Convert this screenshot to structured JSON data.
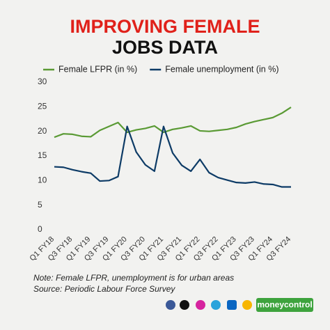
{
  "chart_data": {
    "type": "line",
    "title": "IMPROVING FEMALE",
    "subtitle": "JOBS DATA",
    "categories": [
      "Q1 FY18",
      null,
      "Q3 FY18",
      null,
      "Q1 FY19",
      null,
      "Q3 FY19",
      null,
      "Q1 FY20",
      null,
      "Q3 FY20",
      null,
      "Q1 FY21",
      null,
      "Q3 FY21",
      null,
      "Q1 FY22",
      null,
      "Q3 FY22",
      null,
      "Q1 FY23",
      null,
      "Q3 FY23",
      null,
      "Q1 FY24",
      null,
      "Q3 FY24"
    ],
    "series": [
      {
        "name": "Female LFPR (in %)",
        "color": "#5a9a34",
        "values": [
          18.8,
          19.5,
          19.4,
          19.0,
          18.9,
          20.2,
          21.0,
          21.8,
          19.8,
          20.3,
          20.6,
          21.1,
          19.8,
          20.4,
          20.7,
          21.1,
          20.1,
          20.0,
          20.2,
          20.4,
          20.8,
          21.5,
          22.0,
          22.4,
          22.8,
          23.7,
          24.9
        ]
      },
      {
        "name": "Female unemployment (in %)",
        "color": "#0d3b66",
        "values": [
          12.8,
          12.7,
          12.2,
          11.8,
          11.5,
          9.9,
          10.0,
          10.8,
          21.0,
          15.8,
          13.2,
          11.9,
          21.0,
          15.6,
          13.1,
          11.9,
          14.3,
          11.6,
          10.6,
          10.1,
          9.6,
          9.5,
          9.7,
          9.3,
          9.2,
          8.7,
          8.7
        ]
      }
    ],
    "ylim": [
      0,
      30
    ],
    "yticks": [
      0,
      5,
      10,
      15,
      20,
      25,
      30
    ],
    "grid": false,
    "legend": "top",
    "notes": [
      "Note: Female LFPR, unemployment is for urban areas",
      "Source: Periodic Labour Force Survey"
    ]
  },
  "footer": {
    "brand": "moneycontrol"
  }
}
